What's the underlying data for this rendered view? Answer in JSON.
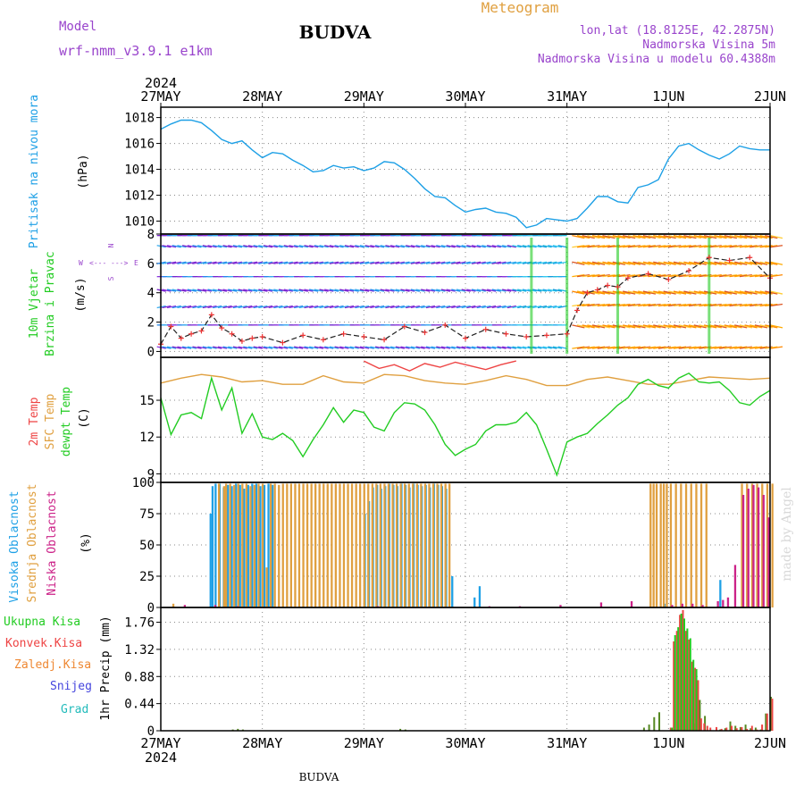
{
  "header": {
    "model_label": "Model",
    "model_name": "wrf-nmm_v3.9.1  e1km",
    "station": "BUDVA",
    "product": "Meteogram",
    "lonlat": "lon,lat (18.8125E, 42.2875N)",
    "elevation": "Nadmorska Visina 5m",
    "model_elevation": "Nadmorska Visina u modelu 60.4388m",
    "year_top": "2024",
    "year_bottom": "2024",
    "footer_station": "BUDVA",
    "credit": "made by Angel"
  },
  "colors": {
    "pressure": "#1ea0e6",
    "wind_label": "#22cc22",
    "temp_2m": "#ee4444",
    "temp_sfc": "#e0a040",
    "dewpoint": "#22cc22",
    "cloud_high": "#1ea0e6",
    "cloud_mid": "#e0a040",
    "cloud_low": "#cc2288",
    "precip_total": "#22cc22",
    "precip_conv": "#ee4444",
    "precip_snow": "#4444dd",
    "precip_frozen": "#ee8833",
    "precip_grad": "#22bbbb",
    "header_purple": "#9944cc",
    "header_orange": "#e0a040"
  },
  "chart_data": [
    {
      "type": "line",
      "panel": "pressure",
      "ylabel": "(hPa)",
      "side_labels": [
        "Pritisak na nivou mora"
      ],
      "x_ticks": [
        "27MAY",
        "28MAY",
        "29MAY",
        "30MAY",
        "31MAY",
        "1JUN",
        "2JUN"
      ],
      "ylim": [
        1009,
        1018.8
      ],
      "y_ticks": [
        1010,
        1012,
        1014,
        1016,
        1018
      ],
      "grid": true,
      "series": [
        {
          "color": "#1ea0e6",
          "x": [
            0,
            0.1,
            0.2,
            0.3,
            0.4,
            0.5,
            0.6,
            0.7,
            0.8,
            0.9,
            1.0,
            1.1,
            1.2,
            1.3,
            1.4,
            1.5,
            1.6,
            1.7,
            1.8,
            1.9,
            2.0,
            2.1,
            2.2,
            2.3,
            2.4,
            2.5,
            2.6,
            2.7,
            2.8,
            2.9,
            3.0,
            3.1,
            3.2,
            3.3,
            3.4,
            3.5,
            3.6,
            3.7,
            3.8,
            3.9,
            4.0,
            4.1,
            4.2,
            4.3,
            4.4,
            4.5,
            4.6,
            4.7,
            4.8,
            4.9,
            5.0,
            5.1,
            5.2,
            5.3,
            5.4,
            5.5,
            5.6,
            5.7,
            5.8,
            5.9,
            6.0
          ],
          "values": [
            1017.1,
            1017.5,
            1017.8,
            1017.8,
            1017.6,
            1017.0,
            1016.3,
            1016.0,
            1016.2,
            1015.5,
            1014.9,
            1015.3,
            1015.2,
            1014.7,
            1014.3,
            1013.8,
            1013.9,
            1014.3,
            1014.1,
            1014.2,
            1013.9,
            1014.1,
            1014.6,
            1014.5,
            1014.0,
            1013.3,
            1012.5,
            1011.9,
            1011.8,
            1011.2,
            1010.7,
            1010.9,
            1011.0,
            1010.7,
            1010.6,
            1010.3,
            1009.5,
            1009.7,
            1010.2,
            1010.1,
            1010.0,
            1010.2,
            1011.0,
            1011.9,
            1011.9,
            1011.5,
            1011.4,
            1012.6,
            1012.8,
            1013.2,
            1014.8,
            1015.8,
            1016.0,
            1015.5,
            1015.1,
            1014.8,
            1015.2,
            1015.8,
            1015.6,
            1015.5,
            1015.5
          ]
        }
      ]
    },
    {
      "type": "wind_barbs",
      "panel": "wind",
      "ylabel": "(m/s)",
      "side_labels": [
        "10m Vjetar",
        "Brzina i Pravac"
      ],
      "compass": {
        "n": "N",
        "s": "S",
        "w": "W",
        "e": "E",
        "arrow_left": "<---",
        "arrow_right": "--->"
      },
      "ylim": [
        -0.4,
        8
      ],
      "y_ticks": [
        0,
        2,
        4,
        6,
        8
      ],
      "grid": true,
      "speed_series": {
        "x": [
          0,
          0.1,
          0.2,
          0.3,
          0.4,
          0.5,
          0.6,
          0.7,
          0.8,
          0.9,
          1.0,
          1.2,
          1.4,
          1.6,
          1.8,
          2.0,
          2.2,
          2.4,
          2.6,
          2.8,
          3.0,
          3.2,
          3.4,
          3.6,
          3.8,
          4.0,
          4.1,
          4.2,
          4.3,
          4.4,
          4.5,
          4.6,
          4.8,
          5.0,
          5.2,
          5.4,
          5.6,
          5.8,
          6.0
        ],
        "values": [
          0.5,
          1.7,
          0.9,
          1.2,
          1.4,
          2.5,
          1.6,
          1.2,
          0.7,
          0.9,
          1.0,
          0.6,
          1.1,
          0.8,
          1.2,
          1.0,
          0.8,
          1.7,
          1.3,
          1.8,
          0.9,
          1.5,
          1.2,
          1.0,
          1.1,
          1.2,
          2.8,
          4.0,
          4.2,
          4.5,
          4.4,
          5.0,
          5.3,
          4.9,
          5.5,
          6.4,
          6.2,
          6.4,
          5.0
        ]
      }
    },
    {
      "type": "line",
      "panel": "temperature",
      "ylabel": "(C)",
      "side_labels": [
        "2m Temp",
        "SFC Temp",
        "dewpt Temp"
      ],
      "ylim": [
        8.3,
        18.5
      ],
      "y_ticks": [
        9,
        12,
        15
      ],
      "grid": true,
      "series": [
        {
          "color": "#e0a040",
          "x": [
            0,
            0.2,
            0.4,
            0.6,
            0.8,
            1.0,
            1.2,
            1.4,
            1.6,
            1.8,
            2.0,
            2.2,
            2.4,
            2.6,
            2.8,
            3.0,
            3.2,
            3.4,
            3.6,
            3.8,
            4.0,
            4.2,
            4.4,
            4.6,
            4.8,
            5.0,
            5.2,
            5.4,
            5.6,
            5.8,
            6.0
          ],
          "values": [
            16.4,
            16.8,
            17.1,
            16.9,
            16.5,
            16.6,
            16.3,
            16.3,
            17.0,
            16.5,
            16.4,
            17.1,
            17.0,
            16.6,
            16.4,
            16.3,
            16.6,
            17.0,
            16.7,
            16.2,
            16.2,
            16.7,
            16.9,
            16.6,
            16.3,
            16.3,
            16.6,
            16.9,
            16.8,
            16.7,
            16.8
          ]
        },
        {
          "color": "#ee4444",
          "x": [
            2.0,
            2.15,
            2.3,
            2.45,
            2.6,
            2.75,
            2.9,
            3.05,
            3.2,
            3.35,
            3.5
          ],
          "values": [
            18.2,
            17.6,
            17.9,
            17.4,
            18.0,
            17.7,
            18.1,
            17.8,
            17.5,
            17.9,
            18.2
          ]
        },
        {
          "color": "#22cc22",
          "x": [
            0,
            0.1,
            0.2,
            0.3,
            0.4,
            0.5,
            0.6,
            0.7,
            0.8,
            0.9,
            1.0,
            1.1,
            1.2,
            1.3,
            1.4,
            1.5,
            1.6,
            1.7,
            1.8,
            1.9,
            2.0,
            2.1,
            2.2,
            2.3,
            2.4,
            2.5,
            2.6,
            2.7,
            2.8,
            2.9,
            3.0,
            3.1,
            3.2,
            3.3,
            3.4,
            3.5,
            3.6,
            3.7,
            3.8,
            3.9,
            4.0,
            4.1,
            4.2,
            4.3,
            4.4,
            4.5,
            4.6,
            4.7,
            4.8,
            4.9,
            5.0,
            5.1,
            5.2,
            5.3,
            5.4,
            5.5,
            5.6,
            5.7,
            5.8,
            5.9,
            6.0
          ],
          "values": [
            15.2,
            12.2,
            13.8,
            14.0,
            13.5,
            16.8,
            14.2,
            16.0,
            12.3,
            13.9,
            12.0,
            11.8,
            12.3,
            11.7,
            10.4,
            11.8,
            13.0,
            14.4,
            13.2,
            14.2,
            14.0,
            12.8,
            12.5,
            14.0,
            14.8,
            14.7,
            14.2,
            13.0,
            11.4,
            10.5,
            11.0,
            11.4,
            12.5,
            13.0,
            13.0,
            13.2,
            14.0,
            13.0,
            11.0,
            8.9,
            11.6,
            12.0,
            12.3,
            13.1,
            13.8,
            14.6,
            15.2,
            16.3,
            16.7,
            16.2,
            16.0,
            16.8,
            17.2,
            16.5,
            16.4,
            16.5,
            15.8,
            14.8,
            14.6,
            15.3,
            15.8
          ]
        }
      ]
    },
    {
      "type": "bar",
      "panel": "clouds",
      "ylabel": "(%)",
      "side_labels": [
        "Visoka Oblacnost",
        "Srednja Oblacnost",
        "Niska Oblacnost"
      ],
      "ylim": [
        0,
        100
      ],
      "y_ticks": [
        0,
        25,
        50,
        75,
        100
      ],
      "grid": true,
      "bar_width": 0.02,
      "series": [
        {
          "color": "#1ea0e6",
          "x": [
            0.48,
            0.5,
            0.53,
            0.57,
            0.61,
            0.65,
            0.69,
            0.73,
            0.77,
            0.81,
            0.85,
            0.89,
            0.93,
            0.97,
            1.01,
            1.05,
            1.09,
            2.0,
            2.04,
            2.08,
            2.12,
            2.16,
            2.2,
            2.24,
            2.28,
            2.32,
            2.36,
            2.4,
            2.44,
            2.48,
            2.52,
            2.56,
            2.6,
            2.64,
            2.68,
            2.72,
            2.76,
            2.8,
            2.86,
            3.08,
            3.13,
            4.95,
            5.5,
            5.72,
            5.82,
            5.98
          ],
          "values": [
            75,
            97,
            99,
            99,
            96,
            98,
            97,
            99,
            98,
            95,
            98,
            99,
            99,
            97,
            98,
            99,
            98,
            75,
            85,
            96,
            98,
            95,
            97,
            99,
            98,
            97,
            99,
            98,
            96,
            99,
            98,
            97,
            98,
            96,
            99,
            98,
            97,
            95,
            25,
            8,
            17,
            3,
            22,
            22,
            22,
            25
          ]
        },
        {
          "color": "#e0a040",
          "x": [
            0.1,
            0.55,
            0.6,
            0.62,
            0.66,
            0.7,
            0.74,
            0.78,
            0.82,
            0.86,
            0.9,
            0.94,
            0.98,
            1.02,
            1.06,
            1.1,
            1.14,
            1.18,
            1.22,
            1.26,
            1.3,
            1.34,
            1.38,
            1.42,
            1.46,
            1.5,
            1.54,
            1.58,
            1.62,
            1.66,
            1.7,
            1.74,
            1.78,
            1.82,
            1.86,
            1.9,
            1.94,
            1.98,
            2.02,
            2.06,
            2.1,
            2.14,
            2.18,
            2.22,
            2.26,
            2.3,
            2.34,
            2.38,
            2.42,
            2.46,
            2.5,
            2.54,
            2.58,
            2.62,
            2.66,
            2.7,
            2.74,
            2.78,
            2.82,
            4.8,
            4.83,
            4.86,
            4.9,
            4.93,
            4.96,
            5.0,
            5.05,
            5.1,
            5.15,
            5.2,
            5.25,
            5.3,
            5.35,
            5.7,
            5.75,
            5.8,
            5.85,
            5.9,
            5.95,
            6.0
          ],
          "values": [
            3,
            99,
            97,
            99,
            99,
            98,
            99,
            99,
            99,
            97,
            98,
            99,
            99,
            32,
            99,
            99,
            98,
            99,
            99,
            99,
            99,
            99,
            99,
            99,
            99,
            99,
            99,
            99,
            99,
            99,
            99,
            99,
            99,
            99,
            99,
            99,
            99,
            99,
            99,
            99,
            99,
            99,
            99,
            99,
            99,
            99,
            99,
            99,
            99,
            99,
            99,
            99,
            99,
            99,
            99,
            99,
            99,
            99,
            99,
            99,
            99,
            99,
            99,
            99,
            99,
            99,
            99,
            99,
            99,
            99,
            99,
            99,
            99,
            99,
            99,
            99,
            99,
            99,
            99,
            99
          ]
        },
        {
          "color": "#cc2288",
          "x": [
            0.2,
            0.5,
            0.72,
            2.1,
            3.2,
            3.5,
            3.9,
            4.3,
            4.6,
            5.0,
            5.1,
            5.2,
            5.3,
            5.45,
            5.5,
            5.55,
            5.62,
            5.7,
            5.75,
            5.8,
            5.85,
            5.9,
            5.95
          ],
          "values": [
            2,
            2,
            1,
            1,
            1,
            1,
            2,
            4,
            5,
            2,
            3,
            3,
            2,
            5,
            6,
            8,
            34,
            90,
            95,
            98,
            96,
            90,
            72
          ]
        }
      ]
    },
    {
      "type": "bar",
      "panel": "precipitation",
      "ylabel": "1hr Precip (mm)",
      "side_labels": [
        "Ukupna Kisa",
        "Konvek.Kisa",
        "Zaledj.Kisa",
        "Snijeg",
        "Grad"
      ],
      "ylim": [
        0,
        2.0
      ],
      "y_ticks": [
        0,
        0.44,
        0.88,
        1.32,
        1.76
      ],
      "grid": true,
      "bar_width": 0.018,
      "series": [
        {
          "color": "#558822",
          "x": [
            0.7,
            0.75,
            0.8,
            2.35,
            2.4,
            4.75,
            4.8,
            4.85,
            4.9,
            5.25,
            5.3,
            5.35,
            5.5,
            5.55,
            5.6,
            5.65,
            5.7,
            5.75,
            5.8,
            5.85,
            5.9,
            5.95,
            6.0
          ],
          "values": [
            0.02,
            0.03,
            0.02,
            0.03,
            0.02,
            0.05,
            0.1,
            0.22,
            0.3,
            0.12,
            0.5,
            0.24,
            0.02,
            0.04,
            0.15,
            0.08,
            0.06,
            0.1,
            0.04,
            0.05,
            0.02,
            0.28,
            0.55
          ]
        },
        {
          "color": "#ee4444",
          "x": [
            5.0,
            5.03,
            5.06,
            5.09,
            5.12,
            5.15,
            5.18,
            5.21,
            5.24,
            5.27,
            5.3,
            5.33,
            5.36,
            5.39,
            5.45,
            5.5,
            5.55,
            5.6,
            5.65,
            5.7,
            5.75,
            5.8,
            5.85,
            5.9,
            5.95,
            6.0
          ],
          "values": [
            0.05,
            1.45,
            1.62,
            1.88,
            1.96,
            1.62,
            1.48,
            1.12,
            1.02,
            0.82,
            0.2,
            0.12,
            0.08,
            0.05,
            0.06,
            0.03,
            0.05,
            0.08,
            0.04,
            0.06,
            0.03,
            0.08,
            0.02,
            0.1,
            0.28,
            0.52
          ]
        },
        {
          "color": "#22cc22",
          "x": [
            5.0,
            5.03,
            5.06,
            5.09,
            5.12,
            5.15,
            5.18,
            5.21,
            5.24
          ],
          "values": [
            0.05,
            1.55,
            1.68,
            1.9,
            1.82,
            1.66,
            1.5,
            1.15,
            1.0
          ]
        }
      ]
    }
  ]
}
